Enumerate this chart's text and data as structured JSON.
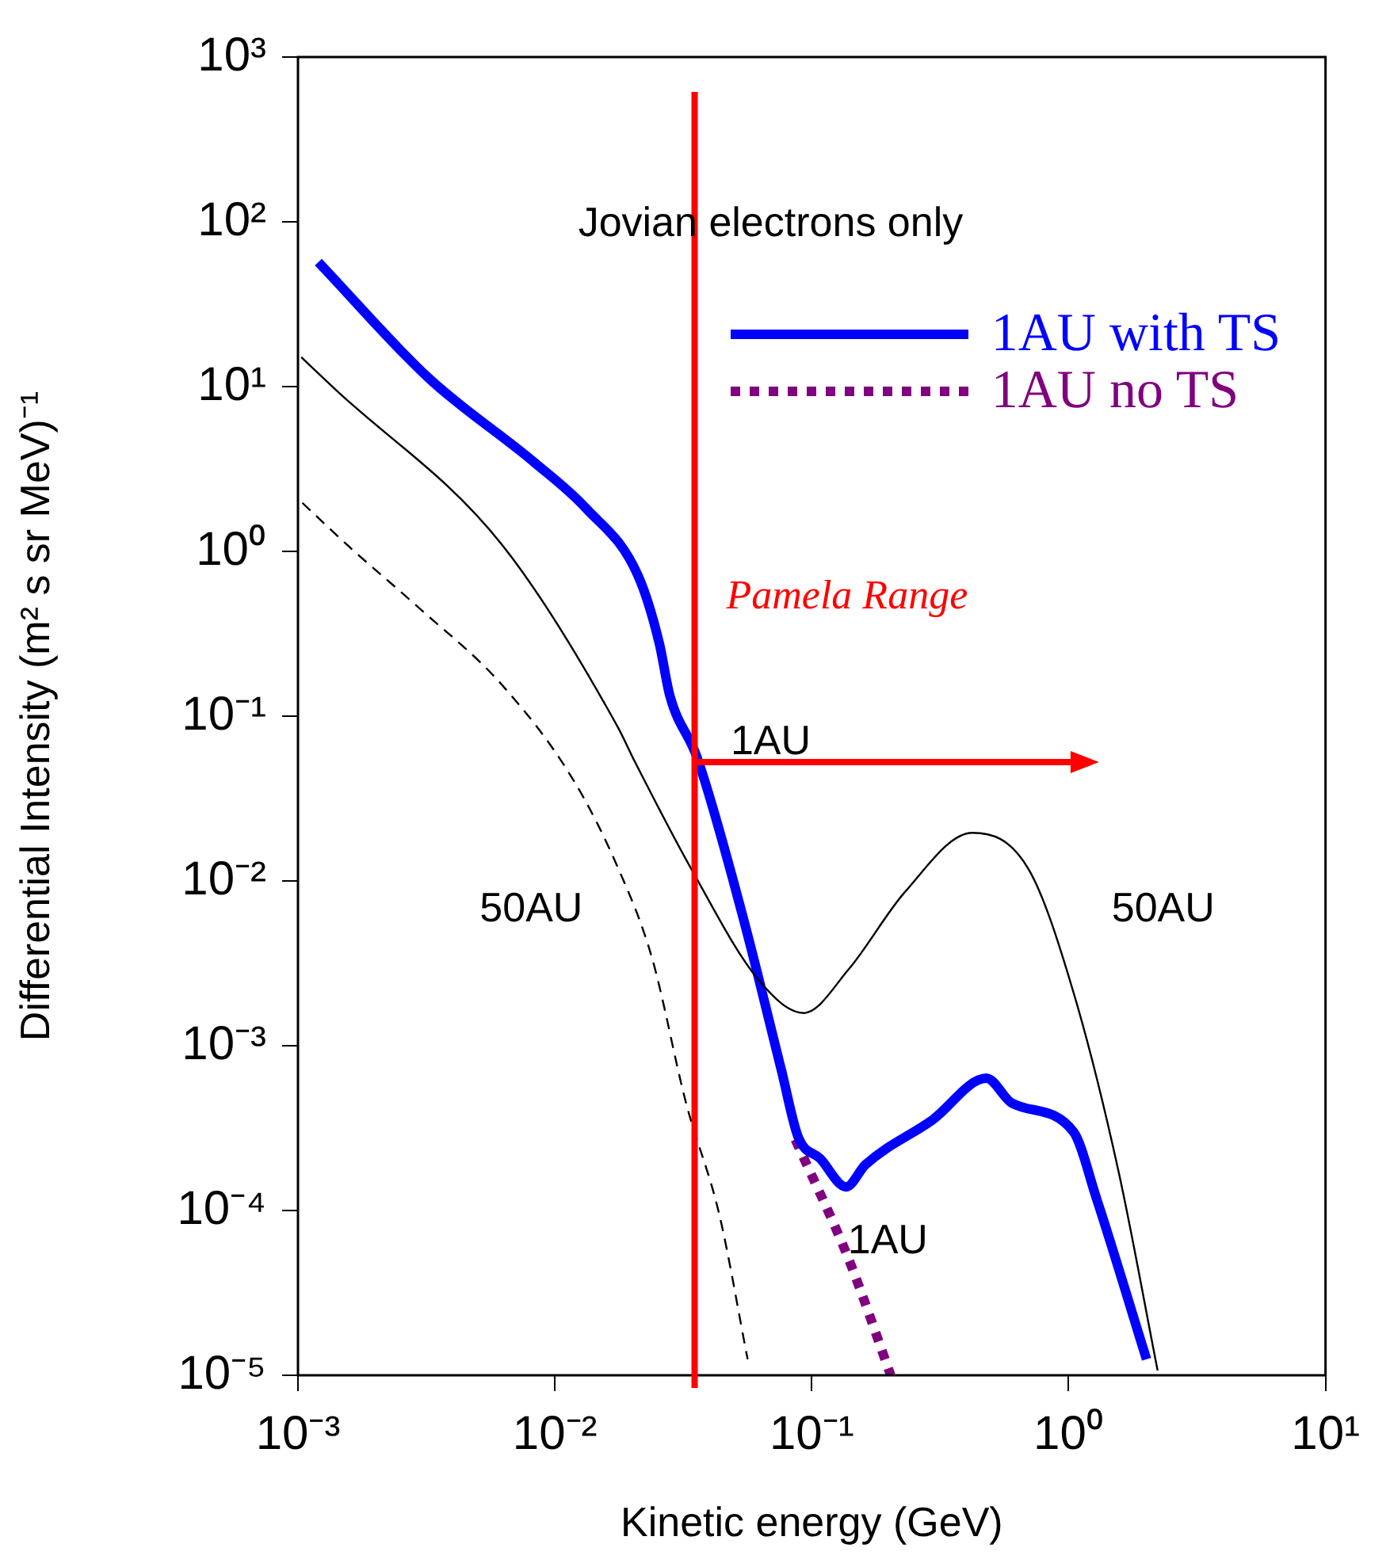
{
  "chart_data": {
    "type": "line",
    "xlabel": "Kinetic energy (GeV)",
    "ylabel": "Differential Intensity (m² s sr MeV)⁻¹",
    "log": "xy",
    "xlim": [
      0.001,
      10
    ],
    "ylim": [
      1e-05,
      1000
    ],
    "xticks": [
      {
        "value": 0.001,
        "label": "10⁻³"
      },
      {
        "value": 0.01,
        "label": "10⁻²"
      },
      {
        "value": 0.1,
        "label": "10⁻¹"
      },
      {
        "value": 1,
        "label": "10⁰"
      },
      {
        "value": 10,
        "label": "10¹"
      }
    ],
    "yticks": [
      {
        "value": 1e-05,
        "label": "10⁻⁵"
      },
      {
        "value": 0.0001,
        "label": "10⁻⁴"
      },
      {
        "value": 0.001,
        "label": "10⁻³"
      },
      {
        "value": 0.01,
        "label": "10⁻²"
      },
      {
        "value": 0.1,
        "label": "10⁻¹"
      },
      {
        "value": 1,
        "label": "10⁰"
      },
      {
        "value": 10,
        "label": "10¹"
      },
      {
        "value": 100,
        "label": "10²"
      },
      {
        "value": 1000,
        "label": "10³"
      }
    ],
    "grid": false,
    "marker": "none",
    "legend": "top right",
    "annotations": [
      "Jovian electrons only",
      "1AU",
      "50AU",
      "50AU",
      "1AU"
    ],
    "ref_lines": [
      {
        "axis": "x",
        "value": 0.035,
        "label": "Pamela Range",
        "color": "#ff0000"
      }
    ],
    "series": [
      {
        "color": "#000000",
        "line_style": "solid",
        "x": [
          0.00103,
          0.00138,
          0.00622,
          0.0175,
          0.0206,
          0.034,
          0.0622,
          0.093,
          0.139,
          0.231,
          0.422,
          0.698,
          1.045,
          1.56,
          2.22
        ],
        "values": [
          15.1,
          9.8,
          1.1,
          0.087,
          0.052,
          0.0118,
          0.0025,
          0.00158,
          0.0029,
          0.0086,
          0.0196,
          0.0118,
          0.0021,
          0.000176,
          1.07e-05
        ]
      },
      {
        "color": "#000000",
        "line_style": "dashed",
        "x": [
          0.00104,
          0.00159,
          0.00293,
          0.00622,
          0.0118,
          0.0177,
          0.0239,
          0.0324,
          0.0437,
          0.0563
        ],
        "values": [
          1.97,
          1.06,
          0.46,
          0.155,
          0.041,
          0.0118,
          0.0034,
          0.00045,
          9.4e-05,
          1.25e-05
        ]
      },
      {
        "name": "1AU with TS",
        "color": "#0000ff",
        "line_style": "solid",
        "x": [
          0.0012,
          0.00324,
          0.00826,
          0.0132,
          0.0211,
          0.0255,
          0.028,
          0.0358,
          0.0536,
          0.0762,
          0.0885,
          0.108,
          0.136,
          0.162,
          0.296,
          0.478,
          0.6,
          1.045,
          1.28,
          2.01
        ],
        "values": [
          57,
          11.2,
          3.5,
          1.83,
          0.71,
          0.277,
          0.134,
          0.056,
          0.0063,
          0.00071,
          0.00028,
          0.000206,
          0.000139,
          0.00019,
          0.000356,
          0.000635,
          0.00045,
          0.0003,
          0.00012,
          1.25e-05
        ]
      },
      {
        "name": "1AU no TS",
        "color": "#800080",
        "line_style": "dotted",
        "x": [
          0.0863,
          0.139,
          0.203
        ],
        "values": [
          0.00027,
          5.1e-05,
          1e-05
        ]
      }
    ]
  }
}
